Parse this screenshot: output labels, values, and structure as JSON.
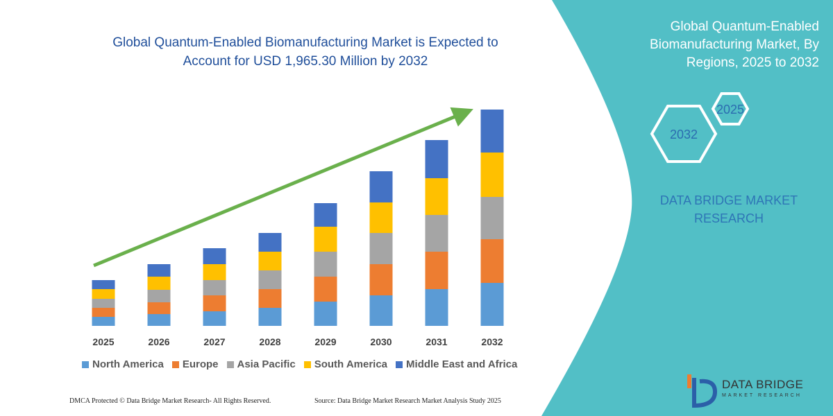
{
  "chart_data": {
    "type": "bar",
    "stacked": true,
    "title": "Global Quantum-Enabled Biomanufacturing Market is Expected to Account for USD 1,965.30 Million by 2032",
    "categories": [
      "2025",
      "2026",
      "2027",
      "2028",
      "2029",
      "2030",
      "2031",
      "2032"
    ],
    "series": [
      {
        "name": "North America",
        "color": "#5b9bd5",
        "values": [
          13,
          17,
          21,
          26,
          35,
          44,
          53,
          62
        ]
      },
      {
        "name": "Europe",
        "color": "#ed7d31",
        "values": [
          13,
          17,
          23,
          27,
          36,
          45,
          54,
          63
        ]
      },
      {
        "name": "Asia Pacific",
        "color": "#a5a5a5",
        "values": [
          13,
          18,
          22,
          27,
          36,
          45,
          53,
          61
        ]
      },
      {
        "name": "South America",
        "color": "#ffc000",
        "values": [
          14,
          19,
          23,
          27,
          36,
          44,
          53,
          64
        ]
      },
      {
        "name": "Middle East and Africa",
        "color": "#4472c4",
        "values": [
          13,
          18,
          23,
          27,
          34,
          45,
          55,
          62
        ]
      }
    ]
  },
  "panel": {
    "title": "Global Quantum-Enabled Biomanufacturing Market, By Regions, 2025 to 2032",
    "badges": [
      "2025",
      "2032"
    ],
    "brand": "DATA BRIDGE MARKET RESEARCH"
  },
  "logo": {
    "name": "DATA BRIDGE",
    "tagline": "MARKET RESEARCH"
  },
  "footer": {
    "left": "DMCA Protected © Data Bridge Market Research-  All Rights Reserved.",
    "right": "Source: Data Bridge Market Research  Market Analysis Study 2025"
  }
}
